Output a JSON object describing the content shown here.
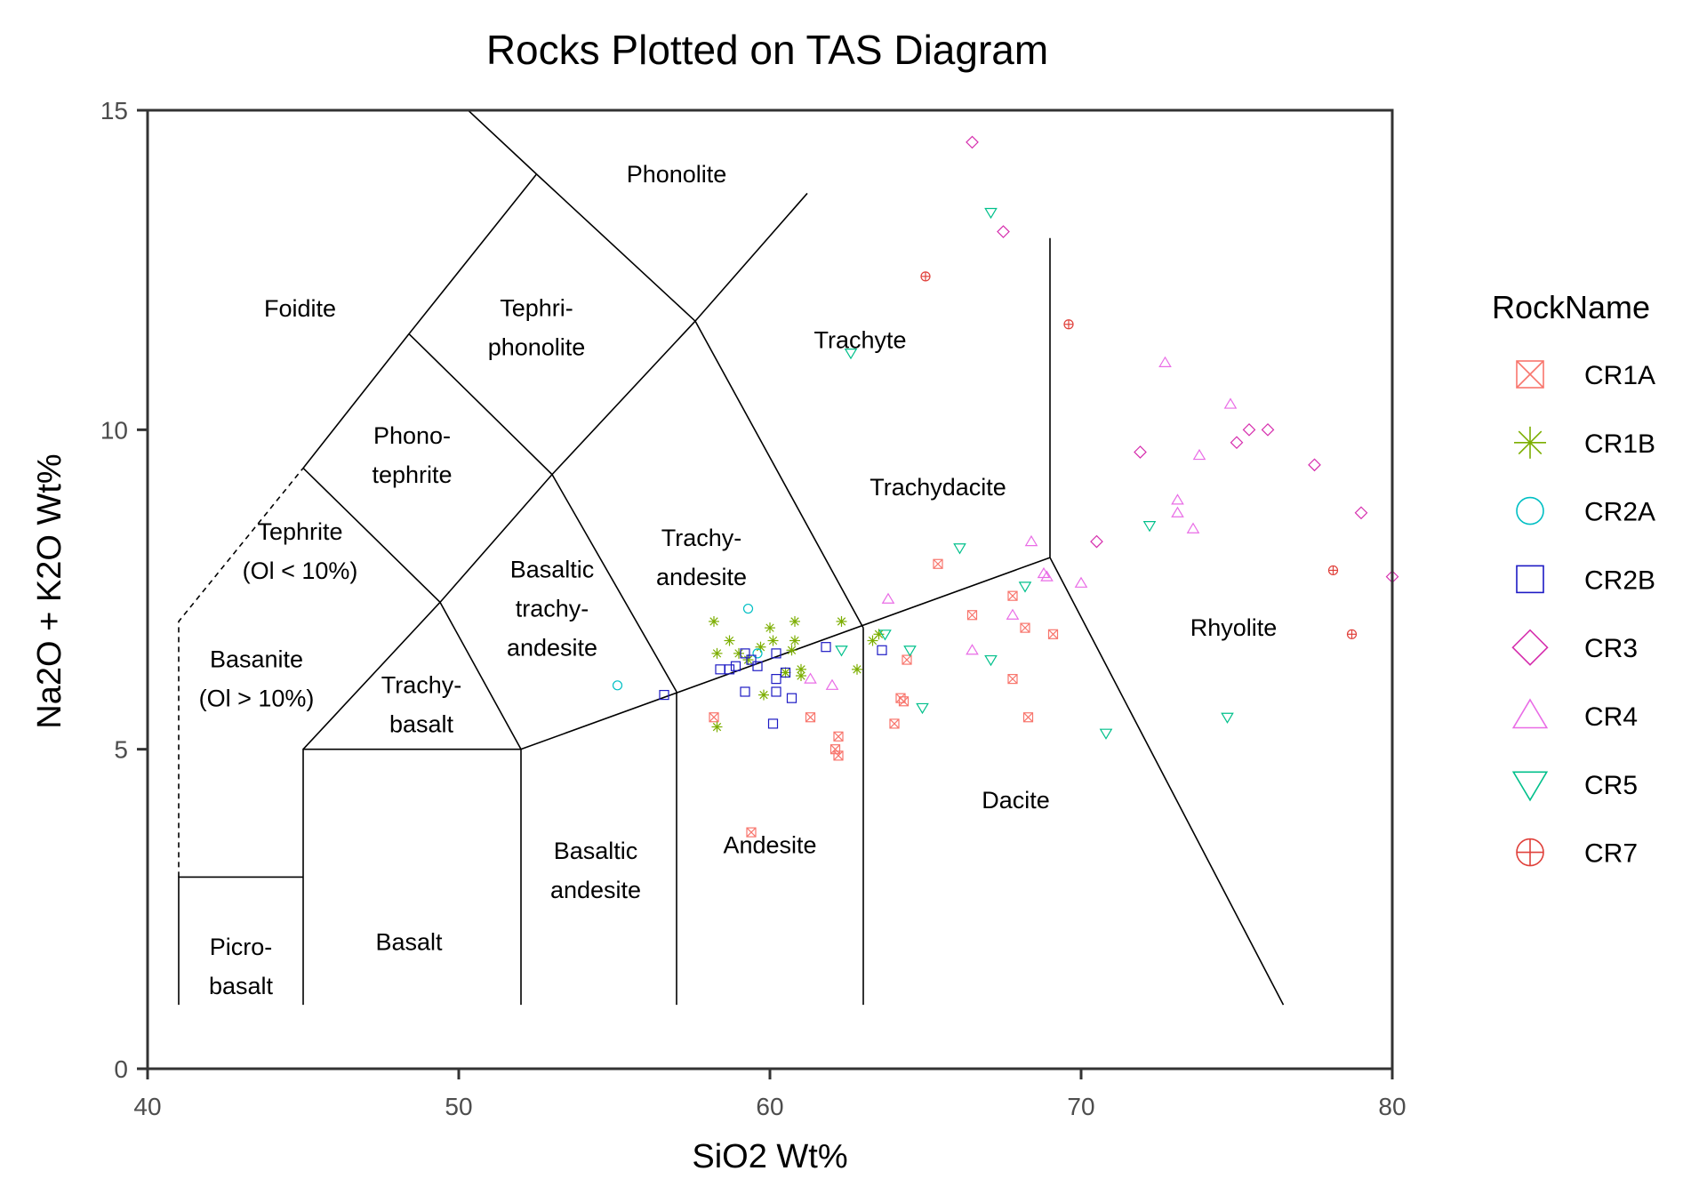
{
  "chart_data": {
    "type": "scatter",
    "title": "Rocks Plotted on TAS Diagram",
    "xlabel": "SiO2 Wt%",
    "ylabel": "Na2O + K2O Wt%",
    "xlim": [
      40,
      80
    ],
    "ylim": [
      0,
      15
    ],
    "xticks": [
      "40",
      "50",
      "60",
      "70",
      "80"
    ],
    "yticks": [
      "0",
      "5",
      "10",
      "15"
    ],
    "grid": false,
    "legend": {
      "title": "RockName",
      "position": "right"
    },
    "region_labels": [
      {
        "text": [
          "Phonolite"
        ],
        "x": 57.0,
        "y": 14.0
      },
      {
        "text": [
          "Foidite"
        ],
        "x": 44.9,
        "y": 11.9
      },
      {
        "text": [
          "Tephri-",
          "phonolite"
        ],
        "x": 52.5,
        "y": 11.6
      },
      {
        "text": [
          "Trachyte"
        ],
        "x": 62.9,
        "y": 11.4
      },
      {
        "text": [
          "Phono-",
          "tephrite"
        ],
        "x": 48.5,
        "y": 9.6
      },
      {
        "text": [
          "Trachydacite"
        ],
        "x": 65.4,
        "y": 9.1
      },
      {
        "text": [
          "Tephrite",
          "(Ol < 10%)"
        ],
        "x": 44.9,
        "y": 8.1
      },
      {
        "text": [
          "Trachy-",
          "andesite"
        ],
        "x": 57.8,
        "y": 8.0
      },
      {
        "text": [
          "Basaltic",
          "trachy-",
          "andesite"
        ],
        "x": 53.0,
        "y": 7.2
      },
      {
        "text": [
          "Rhyolite"
        ],
        "x": 74.9,
        "y": 6.9
      },
      {
        "text": [
          "Basanite",
          "(Ol > 10%)"
        ],
        "x": 43.5,
        "y": 6.1
      },
      {
        "text": [
          "Trachy-",
          "basalt"
        ],
        "x": 48.8,
        "y": 5.7
      },
      {
        "text": [
          "Dacite"
        ],
        "x": 67.9,
        "y": 4.2
      },
      {
        "text": [
          "Andesite"
        ],
        "x": 60.0,
        "y": 3.5
      },
      {
        "text": [
          "Basaltic",
          "andesite"
        ],
        "x": 54.4,
        "y": 3.1
      },
      {
        "text": [
          "Basalt"
        ],
        "x": 48.4,
        "y": 1.98
      },
      {
        "text": [
          "Picro-",
          "basalt"
        ],
        "x": 43.0,
        "y": 1.6
      }
    ],
    "boundaries": [
      {
        "style": "solid",
        "points": [
          [
            41,
            1
          ],
          [
            41,
            3
          ],
          [
            45,
            3
          ]
        ]
      },
      {
        "style": "dashed",
        "points": [
          [
            41,
            3
          ],
          [
            41,
            7
          ],
          [
            45,
            9.4
          ]
        ]
      },
      {
        "style": "solid",
        "points": [
          [
            45,
            1
          ],
          [
            45,
            5
          ],
          [
            52,
            5
          ],
          [
            52,
            1
          ]
        ]
      },
      {
        "style": "solid",
        "points": [
          [
            57,
            1
          ],
          [
            57,
            5.9
          ]
        ]
      },
      {
        "style": "solid",
        "points": [
          [
            63,
            1
          ],
          [
            63,
            6.9
          ]
        ]
      },
      {
        "style": "solid",
        "points": [
          [
            52,
            5
          ],
          [
            69,
            8
          ]
        ]
      },
      {
        "style": "solid",
        "points": [
          [
            69,
            13
          ],
          [
            69,
            8
          ],
          [
            76.5,
            1
          ]
        ]
      },
      {
        "style": "solid",
        "points": [
          [
            45,
            5
          ],
          [
            49.4,
            7.3
          ],
          [
            52,
            5
          ]
        ]
      },
      {
        "style": "solid",
        "points": [
          [
            45,
            9.4
          ],
          [
            49.4,
            7.3
          ],
          [
            53,
            9.3
          ],
          [
            57.6,
            11.7
          ],
          [
            63,
            6.9
          ]
        ]
      },
      {
        "style": "solid",
        "points": [
          [
            52.5,
            14
          ],
          [
            48.4,
            11.5
          ],
          [
            53,
            9.3
          ],
          [
            57,
            5.9
          ]
        ]
      },
      {
        "style": "solid",
        "points": [
          [
            50.3,
            15
          ],
          [
            52.5,
            14
          ],
          [
            57.6,
            11.7
          ],
          [
            61.2,
            13.7
          ]
        ]
      },
      {
        "style": "solid",
        "points": [
          [
            45,
            9.4
          ],
          [
            48.4,
            11.5
          ]
        ]
      }
    ],
    "series": [
      {
        "name": "CR1A",
        "color": "#f8766d",
        "marker": "square-cross",
        "points": [
          [
            58.2,
            5.5
          ],
          [
            59.4,
            3.7
          ],
          [
            61.3,
            5.5
          ],
          [
            62.1,
            5.0
          ],
          [
            62.2,
            4.9
          ],
          [
            62.2,
            5.2
          ],
          [
            64.0,
            5.4
          ],
          [
            64.2,
            5.8
          ],
          [
            64.3,
            5.75
          ],
          [
            64.4,
            6.4
          ],
          [
            65.4,
            7.9
          ],
          [
            66.5,
            7.1
          ],
          [
            67.8,
            7.4
          ],
          [
            67.8,
            6.1
          ],
          [
            68.2,
            6.9
          ],
          [
            68.3,
            5.5
          ],
          [
            69.1,
            6.8
          ]
        ]
      },
      {
        "name": "CR1B",
        "color": "#7cae00",
        "marker": "asterisk",
        "points": [
          [
            58.2,
            7.0
          ],
          [
            58.3,
            5.35
          ],
          [
            58.3,
            6.5
          ],
          [
            58.7,
            6.7
          ],
          [
            59.0,
            6.5
          ],
          [
            59.3,
            6.4
          ],
          [
            59.7,
            6.6
          ],
          [
            59.8,
            5.85
          ],
          [
            60.0,
            6.9
          ],
          [
            60.1,
            6.7
          ],
          [
            60.5,
            6.2
          ],
          [
            60.7,
            6.55
          ],
          [
            60.8,
            7.0
          ],
          [
            60.8,
            6.7
          ],
          [
            61.0,
            6.25
          ],
          [
            61.0,
            6.15
          ],
          [
            62.3,
            7.0
          ],
          [
            62.8,
            6.25
          ],
          [
            63.3,
            6.7
          ],
          [
            63.5,
            6.8
          ]
        ]
      },
      {
        "name": "CR2A",
        "color": "#00bfc4",
        "marker": "circle",
        "points": [
          [
            55.1,
            6.0
          ],
          [
            59.3,
            7.2
          ],
          [
            59.6,
            6.5
          ]
        ]
      },
      {
        "name": "CR2B",
        "color": "#1d1ac4",
        "marker": "square",
        "points": [
          [
            56.6,
            5.85
          ],
          [
            58.4,
            6.25
          ],
          [
            58.7,
            6.25
          ],
          [
            58.9,
            6.3
          ],
          [
            59.2,
            6.5
          ],
          [
            59.4,
            6.4
          ],
          [
            59.2,
            5.9
          ],
          [
            59.6,
            6.3
          ],
          [
            60.1,
            5.4
          ],
          [
            60.2,
            6.5
          ],
          [
            60.2,
            6.1
          ],
          [
            60.2,
            5.9
          ],
          [
            60.5,
            6.2
          ],
          [
            60.7,
            5.8
          ],
          [
            61.8,
            6.6
          ],
          [
            63.6,
            6.55
          ]
        ]
      },
      {
        "name": "CR3",
        "color": "#d62fae",
        "marker": "diamond",
        "points": [
          [
            66.5,
            14.5
          ],
          [
            67.5,
            13.1
          ],
          [
            70.5,
            8.25
          ],
          [
            71.9,
            9.65
          ],
          [
            75.0,
            9.8
          ],
          [
            75.4,
            10.0
          ],
          [
            76.0,
            10.0
          ],
          [
            77.5,
            9.45
          ],
          [
            79.0,
            8.7
          ],
          [
            80.0,
            7.7
          ]
        ]
      },
      {
        "name": "CR4",
        "color": "#e96ce6",
        "marker": "triangle-up",
        "points": [
          [
            61.3,
            6.1
          ],
          [
            62.0,
            6.0
          ],
          [
            63.8,
            7.35
          ],
          [
            66.5,
            6.55
          ],
          [
            67.8,
            7.1
          ],
          [
            68.4,
            8.25
          ],
          [
            68.8,
            7.75
          ],
          [
            68.9,
            7.7
          ],
          [
            70.0,
            7.6
          ],
          [
            72.7,
            11.05
          ],
          [
            73.1,
            8.9
          ],
          [
            73.1,
            8.7
          ],
          [
            73.6,
            8.45
          ],
          [
            73.8,
            9.6
          ],
          [
            74.8,
            10.4
          ]
        ]
      },
      {
        "name": "CR5",
        "color": "#00c08b",
        "marker": "triangle-down",
        "points": [
          [
            62.3,
            6.55
          ],
          [
            62.6,
            11.2
          ],
          [
            63.7,
            6.8
          ],
          [
            64.5,
            6.55
          ],
          [
            64.9,
            5.65
          ],
          [
            66.1,
            8.15
          ],
          [
            67.1,
            6.4
          ],
          [
            67.1,
            13.4
          ],
          [
            68.2,
            7.55
          ],
          [
            70.8,
            5.25
          ],
          [
            72.2,
            8.5
          ],
          [
            74.7,
            5.5
          ]
        ]
      },
      {
        "name": "CR7",
        "color": "#e0413b",
        "marker": "circle-plus",
        "points": [
          [
            65.0,
            12.4
          ],
          [
            69.6,
            11.65
          ],
          [
            78.1,
            7.8
          ],
          [
            78.7,
            6.8
          ]
        ]
      }
    ]
  }
}
